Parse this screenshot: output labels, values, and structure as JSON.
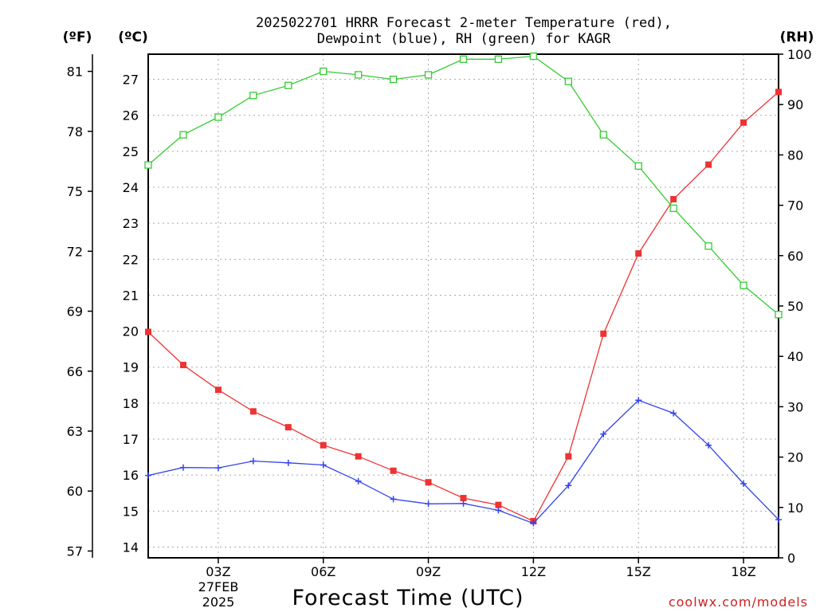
{
  "chart_data": {
    "type": "line",
    "title_line1": "2025022701 HRRR Forecast 2-meter Temperature (red),",
    "title_line2": "Dewpoint (blue), RH (green) for KAGR",
    "xlabel": "Forecast Time (UTC)",
    "unit_f": "(ºF)",
    "unit_c": "(ºC)",
    "unit_rh": "(RH)",
    "date_line1": "27FEB",
    "date_line2": "2025",
    "credit": "coolwx.com/models",
    "x": [
      1,
      2,
      3,
      4,
      5,
      6,
      7,
      8,
      9,
      10,
      11,
      12,
      13,
      14,
      15,
      16,
      17,
      18,
      19
    ],
    "xlim": [
      1,
      19
    ],
    "x_ticks": [
      {
        "x": 3,
        "label": "03Z"
      },
      {
        "x": 6,
        "label": "06Z"
      },
      {
        "x": 9,
        "label": "09Z"
      },
      {
        "x": 12,
        "label": "12Z"
      },
      {
        "x": 15,
        "label": "15Z"
      },
      {
        "x": 18,
        "label": "18Z"
      }
    ],
    "y_celsius": {
      "range": [
        13.7,
        27.7
      ],
      "ticks": [
        "14",
        "15",
        "16",
        "17",
        "18",
        "19",
        "20",
        "21",
        "22",
        "23",
        "24",
        "25",
        "26",
        "27"
      ]
    },
    "y_fahrenheit": {
      "ticks": [
        "57",
        "60",
        "63",
        "66",
        "69",
        "72",
        "75",
        "78",
        "81"
      ]
    },
    "y_rh": {
      "range": [
        0,
        100
      ],
      "ticks": [
        "0",
        "10",
        "20",
        "30",
        "40",
        "50",
        "60",
        "70",
        "80",
        "90",
        "100"
      ]
    },
    "grid": true,
    "series": [
      {
        "name": "Temperature",
        "axis": "celsius",
        "color": "#ee3333",
        "marker": "filled-square",
        "values": [
          19.98,
          19.06,
          18.37,
          17.77,
          17.33,
          16.83,
          16.52,
          16.12,
          15.8,
          15.36,
          15.17,
          14.72,
          16.52,
          19.93,
          22.16,
          23.67,
          24.63,
          25.8,
          26.65
        ]
      },
      {
        "name": "Dewpoint",
        "axis": "celsius",
        "color": "#3344ee",
        "marker": "plus",
        "values": [
          15.99,
          16.21,
          16.2,
          16.39,
          16.34,
          16.28,
          15.83,
          15.33,
          15.2,
          15.21,
          15.02,
          14.66,
          15.71,
          17.14,
          18.08,
          17.72,
          16.83,
          15.76,
          14.76
        ]
      },
      {
        "name": "RH",
        "axis": "rh",
        "color": "#33cc33",
        "marker": "open-square",
        "values": [
          78,
          84,
          87.5,
          91.8,
          93.8,
          96.6,
          95.9,
          95,
          95.9,
          99,
          99,
          99.6,
          94.6,
          84,
          77.8,
          69.4,
          61.9,
          54.1,
          48.3
        ]
      }
    ]
  }
}
